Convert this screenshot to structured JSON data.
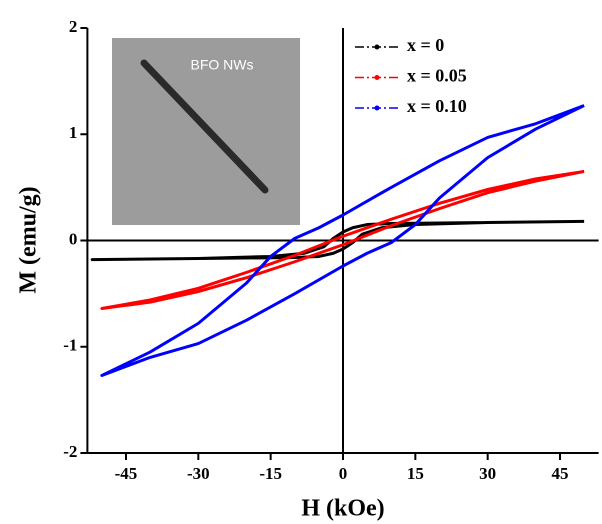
{
  "chart_data": {
    "type": "line",
    "xlabel": "H (kOe)",
    "ylabel": "M (emu/g)",
    "xlim": [
      -53,
      53
    ],
    "xticks": [
      -45,
      -30,
      -15,
      0,
      15,
      30,
      45
    ],
    "ylim": [
      -2,
      2
    ],
    "yticks": [
      -2,
      -1,
      0,
      1,
      2
    ],
    "legend": "upper right",
    "inset_label": "BFO NWs",
    "series": [
      {
        "name": "x = 0",
        "color": "#000000",
        "x": [
          50,
          30,
          10,
          5,
          2,
          0,
          -2,
          -4,
          -8,
          -15,
          -30,
          -52,
          -30,
          -10,
          -5,
          -2,
          0,
          2,
          4,
          8,
          15,
          30,
          50
        ],
        "values": [
          0.18,
          0.17,
          0.16,
          0.15,
          0.12,
          0.08,
          0.02,
          -0.06,
          -0.12,
          -0.15,
          -0.17,
          -0.18,
          -0.17,
          -0.16,
          -0.15,
          -0.12,
          -0.08,
          -0.02,
          0.06,
          0.12,
          0.15,
          0.17,
          0.18
        ]
      },
      {
        "name": "x = 0.05",
        "color": "#ff0000",
        "x": [
          50,
          40,
          30,
          20,
          10,
          0,
          -10,
          -20,
          -30,
          -40,
          -50,
          -40,
          -30,
          -20,
          -10,
          0,
          10,
          20,
          30,
          40,
          50
        ],
        "values": [
          0.65,
          0.58,
          0.48,
          0.35,
          0.2,
          0.04,
          -0.14,
          -0.3,
          -0.45,
          -0.56,
          -0.64,
          -0.58,
          -0.48,
          -0.35,
          -0.2,
          -0.04,
          0.14,
          0.3,
          0.45,
          0.56,
          0.65
        ]
      },
      {
        "name": "x = 0.10",
        "color": "#0000ff",
        "x": [
          50,
          40,
          30,
          20,
          10,
          0,
          -5,
          -10,
          -15,
          -20,
          -30,
          -40,
          -50,
          -40,
          -30,
          -20,
          -10,
          0,
          5,
          10,
          15,
          20,
          30,
          40,
          50
        ],
        "values": [
          1.27,
          1.1,
          0.97,
          0.75,
          0.5,
          0.24,
          0.12,
          0.02,
          -0.15,
          -0.4,
          -0.78,
          -1.05,
          -1.27,
          -1.1,
          -0.97,
          -0.75,
          -0.5,
          -0.24,
          -0.12,
          -0.02,
          0.15,
          0.4,
          0.78,
          1.05,
          1.27
        ]
      }
    ]
  }
}
